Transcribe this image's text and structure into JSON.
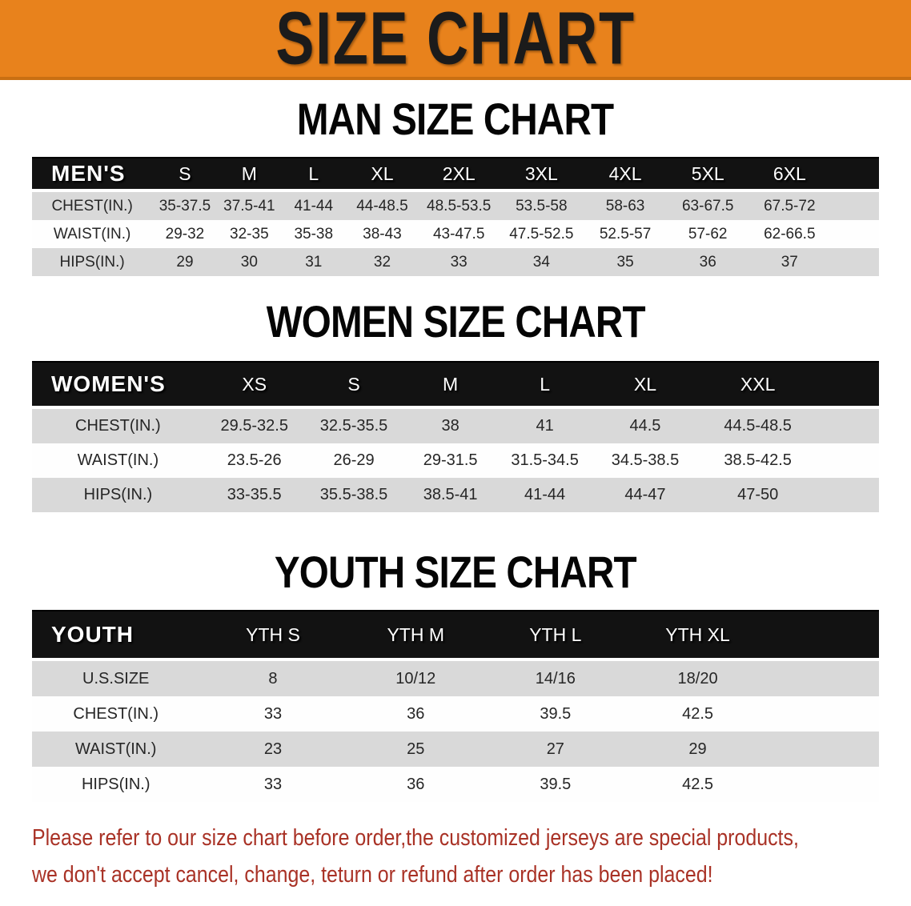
{
  "theme": {
    "banner_bg": "#E8821C",
    "banner_text": "#1B1B1B",
    "header_bar_bg": "#121212",
    "header_bar_text": "#FFFFFF",
    "row_stripe": "#D9D9D9",
    "text": "#262626",
    "disclaimer_red": "#A93226"
  },
  "banner": {
    "title": "SIZE CHART"
  },
  "sections": [
    {
      "heading": "MAN SIZE CHART",
      "group_label": "MEN'S",
      "columns": [
        "S",
        "M",
        "L",
        "XL",
        "2XL",
        "3XL",
        "4XL",
        "5XL",
        "6XL"
      ],
      "rows": [
        {
          "label": "CHEST(IN.)",
          "values": [
            "35-37.5",
            "37.5-41",
            "41-44",
            "44-48.5",
            "48.5-53.5",
            "53.5-58",
            "58-63",
            "63-67.5",
            "67.5-72"
          ]
        },
        {
          "label": "WAIST(IN.)",
          "values": [
            "29-32",
            "32-35",
            "35-38",
            "38-43",
            "43-47.5",
            "47.5-52.5",
            "52.5-57",
            "57-62",
            "62-66.5"
          ]
        },
        {
          "label": "HIPS(IN.)",
          "values": [
            "29",
            "30",
            "31",
            "32",
            "33",
            "34",
            "35",
            "36",
            "37"
          ]
        }
      ]
    },
    {
      "heading": "WOMEN SIZE CHART",
      "group_label": "WOMEN'S",
      "columns": [
        "XS",
        "S",
        "M",
        "L",
        "XL",
        "XXL"
      ],
      "rows": [
        {
          "label": "CHEST(IN.)",
          "values": [
            "29.5-32.5",
            "32.5-35.5",
            "38",
            "41",
            "44.5",
            "44.5-48.5"
          ]
        },
        {
          "label": "WAIST(IN.)",
          "values": [
            "23.5-26",
            "26-29",
            "29-31.5",
            "31.5-34.5",
            "34.5-38.5",
            "38.5-42.5"
          ]
        },
        {
          "label": "HIPS(IN.)",
          "values": [
            "33-35.5",
            "35.5-38.5",
            "38.5-41",
            "41-44",
            "44-47",
            "47-50"
          ]
        }
      ]
    },
    {
      "heading": "YOUTH SIZE CHART",
      "group_label": "YOUTH",
      "columns": [
        "YTH S",
        "YTH M",
        "YTH L",
        "YTH XL"
      ],
      "rows": [
        {
          "label": "U.S.SIZE",
          "values": [
            "8",
            "10/12",
            "14/16",
            "18/20"
          ]
        },
        {
          "label": "CHEST(IN.)",
          "values": [
            "33",
            "36",
            "39.5",
            "42.5"
          ]
        },
        {
          "label": "WAIST(IN.)",
          "values": [
            "23",
            "25",
            "27",
            "29"
          ]
        },
        {
          "label": "HIPS(IN.)",
          "values": [
            "33",
            "36",
            "39.5",
            "42.5"
          ]
        }
      ]
    }
  ],
  "disclaimer": {
    "line1": "Please refer to our size chart before order,the customized jerseys are special products,",
    "line2": "we don't accept cancel, change, teturn or refund after order has been placed!"
  }
}
